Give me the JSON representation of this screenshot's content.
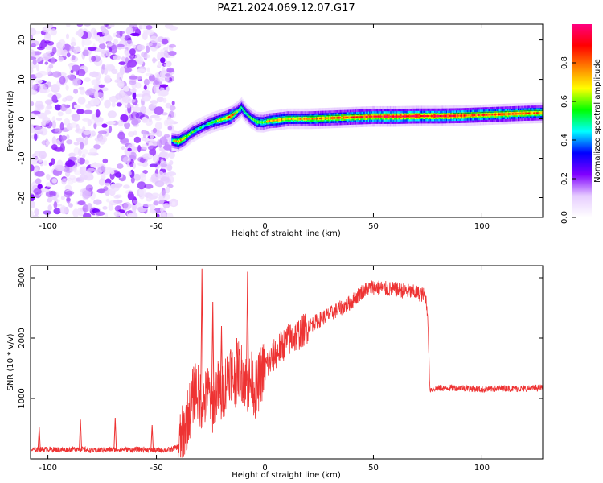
{
  "figure_title": "PAZ1.2024.069.12.07.G17",
  "chart_data": [
    {
      "type": "heatmap",
      "title": "PAZ1.2024.069.12.07.G17",
      "xlabel": "Height of straight line (km)",
      "ylabel": "Frequency (Hz)",
      "xlim": [
        -108,
        128
      ],
      "ylim": [
        -25,
        24
      ],
      "xticks": [
        -100,
        -50,
        0,
        50,
        100
      ],
      "yticks": [
        -20,
        -10,
        0,
        10,
        20
      ],
      "grid": false,
      "colorbar": {
        "label": "Normalized spectral amplitude",
        "range": [
          0,
          1
        ],
        "ticks": [
          "0.0",
          "0.2",
          "0.4",
          "0.6",
          "0.8"
        ],
        "colors": [
          "#ffffff",
          "#e6ccff",
          "#8000ff",
          "#0000ff",
          "#00ffff",
          "#00ff00",
          "#ffff00",
          "#ff8000",
          "#ff0000",
          "#ff0080"
        ]
      },
      "noise_region_x": [
        -108,
        -42
      ],
      "ridge": {
        "x": [
          -43,
          -40,
          -37,
          -34,
          -31,
          -28,
          -25,
          -22,
          -19,
          -16,
          -13,
          -11,
          -9,
          -7,
          -4,
          -1,
          2,
          6,
          10,
          15,
          20,
          30,
          40,
          50,
          60,
          70,
          80,
          90,
          100,
          110,
          120,
          128
        ],
        "freq": [
          -5.5,
          -5.8,
          -4.8,
          -3.5,
          -2.6,
          -1.8,
          -1.0,
          -0.5,
          0.0,
          0.6,
          1.8,
          2.8,
          1.4,
          0.3,
          -0.8,
          -0.9,
          -0.5,
          -0.3,
          0.0,
          0.0,
          0.0,
          0.2,
          0.4,
          0.6,
          0.6,
          0.7,
          0.7,
          0.8,
          1.0,
          1.2,
          1.4,
          1.5
        ],
        "peak": [
          0.5,
          0.8,
          0.65,
          0.55,
          0.5,
          0.45,
          0.55,
          0.6,
          0.65,
          0.85,
          0.6,
          0.55,
          0.5,
          0.55,
          0.6,
          0.6,
          0.7,
          0.75,
          0.7,
          0.7,
          0.75,
          0.8,
          0.85,
          0.9,
          0.95,
          0.9,
          0.9,
          0.88,
          0.85,
          0.85,
          0.8,
          0.8
        ]
      }
    },
    {
      "type": "line",
      "xlabel": "Height of straight line (km)",
      "ylabel": "SNR (10 * v/v)",
      "xlim": [
        -108,
        128
      ],
      "ylim": [
        0,
        3200
      ],
      "xticks": [
        -100,
        -50,
        0,
        50,
        100
      ],
      "yticks": [
        1000,
        2000,
        3000
      ],
      "grid": false,
      "color": "#ee3333",
      "series": [
        {
          "x": [
            -108,
            -100,
            -92,
            -86,
            -80,
            -74,
            -68,
            -62,
            -56,
            -50,
            -44,
            -40,
            -37,
            -34,
            -32,
            -30,
            -28,
            -26,
            -24,
            -22,
            -20,
            -18,
            -16,
            -14,
            -12,
            -10,
            -8,
            -6,
            -4,
            -2,
            0,
            3,
            6,
            10,
            15,
            20,
            25,
            30,
            35,
            40,
            45,
            50,
            55,
            60,
            65,
            70,
            74,
            75,
            76,
            80,
            90,
            100,
            110,
            120,
            128
          ],
          "y": [
            150,
            160,
            150,
            170,
            140,
            150,
            160,
            150,
            160,
            140,
            150,
            200,
            500,
            900,
            1200,
            1000,
            950,
            1100,
            900,
            1200,
            1000,
            1300,
            1500,
            1300,
            1500,
            1400,
            1200,
            1300,
            1100,
            1400,
            1500,
            1650,
            1800,
            1950,
            2050,
            2200,
            2300,
            2400,
            2500,
            2600,
            2780,
            2850,
            2820,
            2800,
            2780,
            2750,
            2700,
            2400,
            1150,
            1170,
            1180,
            1150,
            1170,
            1160,
            1180
          ],
          "spikes": [
            {
              "x": -104,
              "y": 520
            },
            {
              "x": -85,
              "y": 650
            },
            {
              "x": -69,
              "y": 680
            },
            {
              "x": -52,
              "y": 560
            },
            {
              "x": -29,
              "y": 3150
            },
            {
              "x": -24,
              "y": 2600
            },
            {
              "x": -20,
              "y": 2200
            },
            {
              "x": -8,
              "y": 3100
            },
            {
              "x": -13,
              "y": 2000
            }
          ]
        }
      ]
    }
  ]
}
